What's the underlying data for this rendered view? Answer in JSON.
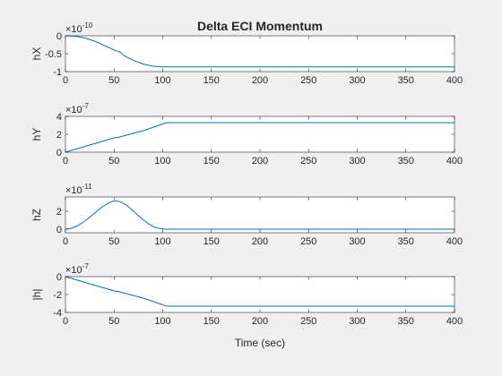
{
  "figure": {
    "title": "Delta ECI Momentum",
    "xlabel": "Time (sec)",
    "line_color": "#0072bd",
    "axes_bg": "#ffffff",
    "figure_bg": "#f0f0f0"
  },
  "chart_data": [
    {
      "type": "line",
      "ylabel": "hX",
      "exponent_label": "×10",
      "exponent_power": "-10",
      "xlim": [
        0,
        400
      ],
      "ylim": [
        -1,
        0
      ],
      "xticks": [
        0,
        50,
        100,
        150,
        200,
        250,
        300,
        350,
        400
      ],
      "yticks": [
        0,
        -0.5,
        -1
      ],
      "ytick_labels": [
        "0",
        "-0.5",
        "-1"
      ],
      "grid": false,
      "series": [
        {
          "x": [
            0,
            10,
            20,
            30,
            40,
            48,
            52,
            56,
            60,
            70,
            80,
            90,
            100,
            104,
            120,
            200,
            300,
            400
          ],
          "y": [
            0,
            -0.01,
            -0.06,
            -0.15,
            -0.27,
            -0.37,
            -0.42,
            -0.45,
            -0.55,
            -0.69,
            -0.79,
            -0.85,
            -0.87,
            -0.87,
            -0.87,
            -0.87,
            -0.87,
            -0.87
          ]
        }
      ]
    },
    {
      "type": "line",
      "ylabel": "hY",
      "exponent_label": "×10",
      "exponent_power": "-7",
      "xlim": [
        0,
        400
      ],
      "ylim": [
        0,
        4
      ],
      "xticks": [
        0,
        50,
        100,
        150,
        200,
        250,
        300,
        350,
        400
      ],
      "yticks": [
        0,
        2,
        4
      ],
      "ytick_labels": [
        "0",
        "2",
        "4"
      ],
      "grid": false,
      "series": [
        {
          "x": [
            0,
            25,
            50,
            54,
            80,
            104,
            120,
            200,
            300,
            400
          ],
          "y": [
            0,
            0.8,
            1.6,
            1.65,
            2.4,
            3.3,
            3.3,
            3.3,
            3.3,
            3.3
          ]
        }
      ]
    },
    {
      "type": "line",
      "ylabel": "hZ",
      "exponent_label": "×10",
      "exponent_power": "-11",
      "xlim": [
        0,
        400
      ],
      "ylim": [
        -0.4,
        3.6
      ],
      "xticks": [
        0,
        50,
        100,
        150,
        200,
        250,
        300,
        350,
        400
      ],
      "yticks": [
        0,
        2
      ],
      "ytick_labels": [
        "0",
        "2"
      ],
      "grid": false,
      "series": [
        {
          "x": [
            0,
            6,
            12,
            18,
            24,
            30,
            36,
            42,
            48,
            52,
            56,
            62,
            68,
            74,
            80,
            86,
            92,
            98,
            104,
            150,
            200,
            300,
            400
          ],
          "y": [
            0,
            0.1,
            0.35,
            0.75,
            1.25,
            1.8,
            2.35,
            2.8,
            3.1,
            3.15,
            3.08,
            2.75,
            2.2,
            1.6,
            1.05,
            0.55,
            0.2,
            0.05,
            0,
            0,
            0,
            0,
            0
          ]
        }
      ]
    },
    {
      "type": "line",
      "ylabel": "|h|",
      "exponent_label": "×10",
      "exponent_power": "-7",
      "xlim": [
        0,
        400
      ],
      "ylim": [
        -4,
        0
      ],
      "xticks": [
        0,
        50,
        100,
        150,
        200,
        250,
        300,
        350,
        400
      ],
      "yticks": [
        0,
        -2,
        -4
      ],
      "ytick_labels": [
        "0",
        "-2",
        "-4"
      ],
      "grid": false,
      "series": [
        {
          "x": [
            0,
            25,
            50,
            54,
            80,
            104,
            120,
            200,
            300,
            400
          ],
          "y": [
            0,
            -0.8,
            -1.6,
            -1.65,
            -2.4,
            -3.3,
            -3.3,
            -3.3,
            -3.3,
            -3.3
          ]
        }
      ]
    }
  ]
}
